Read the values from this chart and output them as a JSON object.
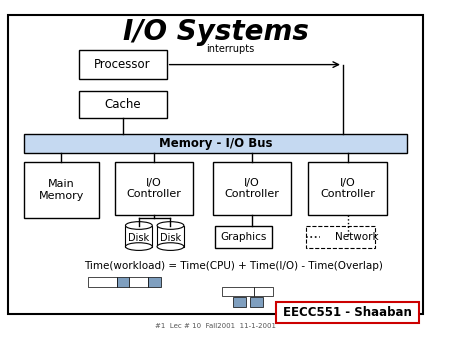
{
  "title": "I/O Systems",
  "bg_color": "#ffffff",
  "bus_color": "#c5d9f1",
  "bus_label": "Memory - I/O Bus",
  "processor_label": "Processor",
  "cache_label": "Cache",
  "main_memory_label": "Main\nMemory",
  "io_controller_label": "I/O\nController",
  "interrupts_label": "interrupts",
  "disk_label": "Disk",
  "graphics_label": "Graphics",
  "network_label": "Network",
  "formula_label": "Time(workload) = Time(CPU) + Time(I/O) - Time(Overlap)",
  "footer_label": "EECC551 - Shaaban",
  "footer_small": "#1  Lec # 10  Fall2001  11-1-2001",
  "timeline_blue": "#7f9fbf"
}
